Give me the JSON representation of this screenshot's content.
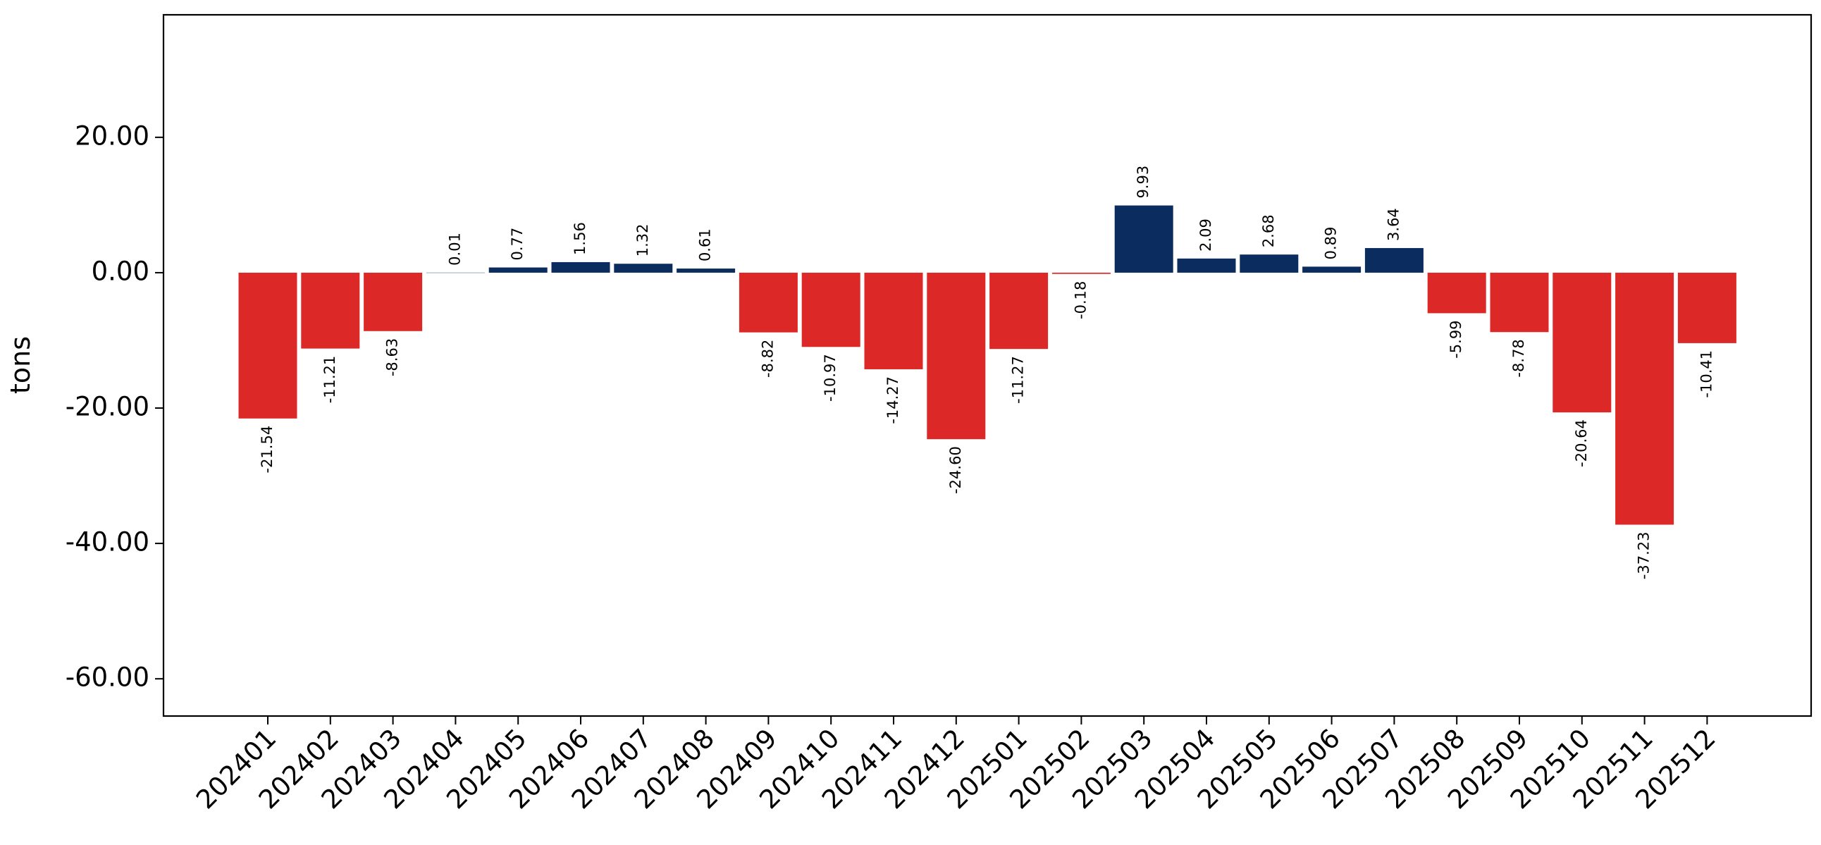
{
  "chart_data": {
    "type": "bar",
    "xlabel": "",
    "ylabel": "tons",
    "ylim": [
      -65.5,
      38.1
    ],
    "yticks": [
      -60,
      -40,
      -20,
      0,
      20
    ],
    "ytick_labels": [
      "-60.00",
      "-40.00",
      "-20.00",
      "0.00",
      "20.00"
    ],
    "grid": false,
    "colors": {
      "positive": "#0b2c5f",
      "negative": "#dd2828"
    },
    "categories": [
      "202401",
      "202402",
      "202403",
      "202404",
      "202405",
      "202406",
      "202407",
      "202408",
      "202409",
      "202410",
      "202411",
      "202412",
      "202501",
      "202502",
      "202503",
      "202504",
      "202505",
      "202506",
      "202507",
      "202508",
      "202509",
      "202510",
      "202511",
      "202512"
    ],
    "values": [
      -21.54,
      -11.21,
      -8.63,
      0.01,
      0.77,
      1.56,
      1.32,
      0.61,
      -8.82,
      -10.97,
      -14.27,
      -24.6,
      -11.27,
      -0.18,
      9.93,
      2.09,
      2.68,
      0.89,
      3.64,
      -5.99,
      -8.78,
      -20.64,
      -37.23,
      -10.41
    ],
    "value_labels": [
      "-21.54",
      "-11.21",
      "-8.63",
      "0.01",
      "0.77",
      "1.56",
      "1.32",
      "0.61",
      "-8.82",
      "-10.97",
      "-14.27",
      "-24.60",
      "-11.27",
      "-0.18",
      "9.93",
      "2.09",
      "2.68",
      "0.89",
      "3.64",
      "-5.99",
      "-8.78",
      "-20.64",
      "-37.23",
      "-10.41"
    ]
  }
}
